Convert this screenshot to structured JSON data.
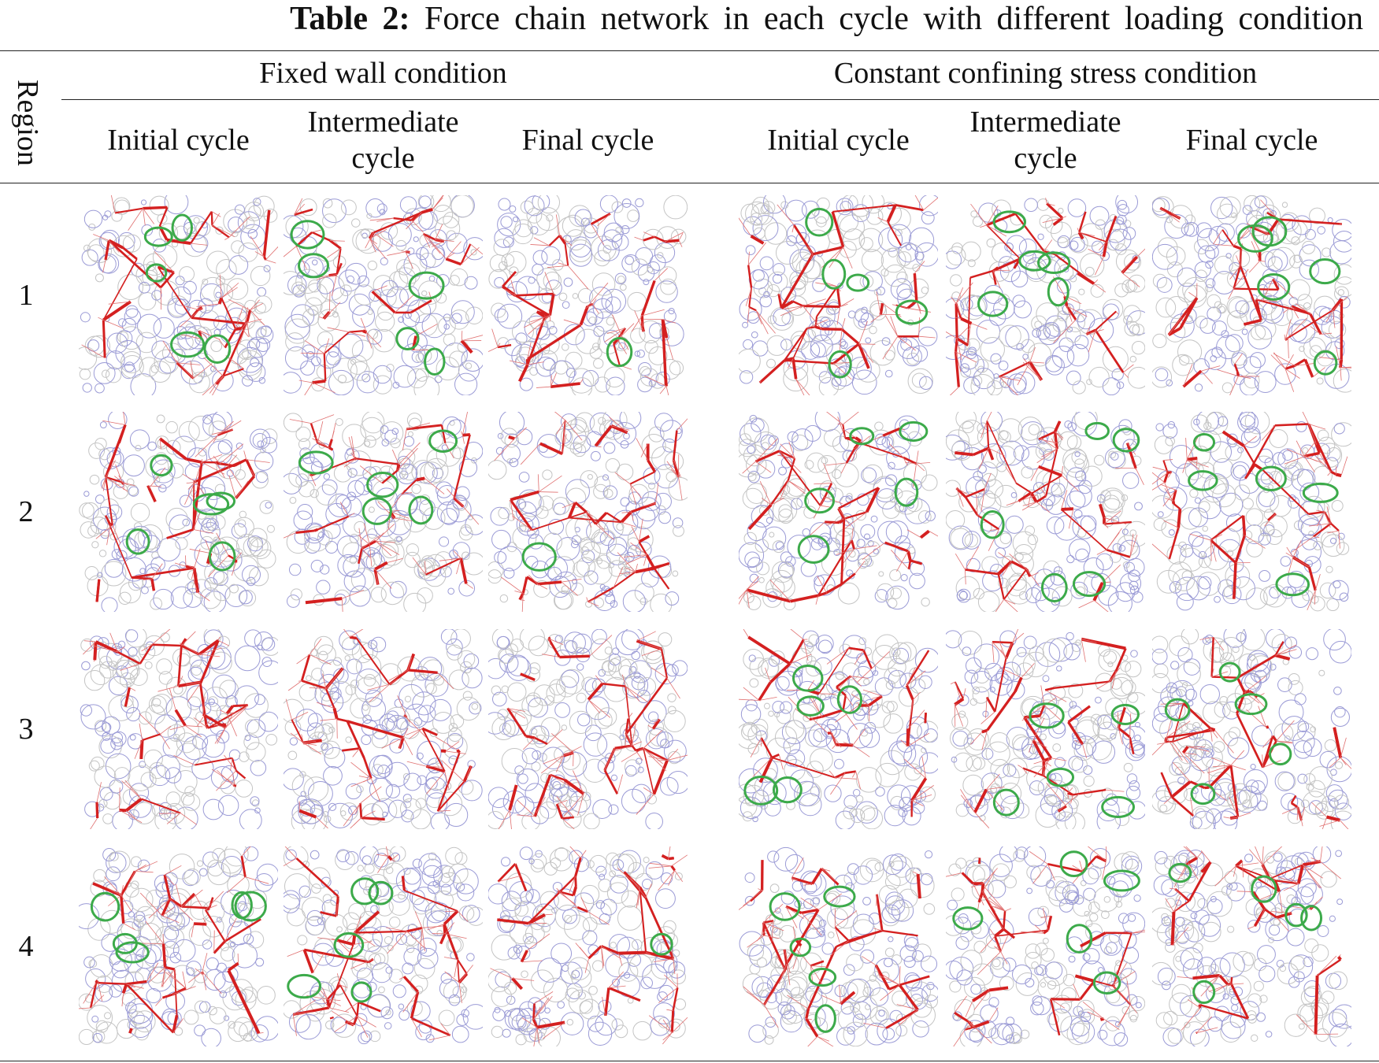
{
  "caption": {
    "label": "Table 2:",
    "text": "Force chain network in each cycle with different loading condition"
  },
  "table": {
    "region_header": "Region",
    "groups": [
      "Fixed wall condition",
      "Constant confining stress condition"
    ],
    "subheaders": [
      [
        "Initial cycle",
        "Intermediate cycle",
        "Final cycle"
      ],
      [
        "Initial cycle",
        "Intermediate cycle",
        "Final cycle"
      ]
    ],
    "rows": [
      "1",
      "2",
      "3",
      "4"
    ]
  }
}
